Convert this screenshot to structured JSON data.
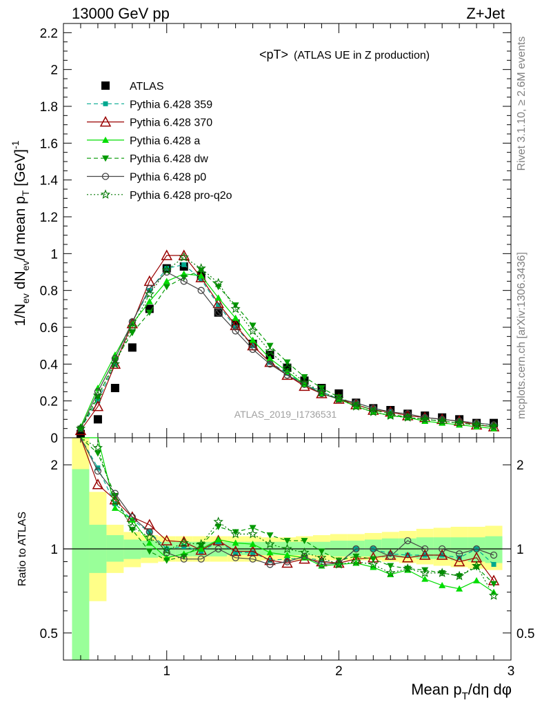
{
  "header": {
    "left": "13000 GeV pp",
    "right": "Z+Jet"
  },
  "side": {
    "rivet": "Rivet 3.1.10, ≥ 2.6M events",
    "mcplots": "mcplots.cern.ch [arXiv:1306.3436]"
  },
  "chart_data": [
    {
      "type": "scatter",
      "title": "<pT> (ATLAS UE in Z production)",
      "title_main": "<pT>",
      "title_sub": "(ATLAS UE in Z production)",
      "ylabel": "1/N_ev dN_ev/d mean p_T [GeV]^-1",
      "ylim": [
        0,
        2.25
      ],
      "xlim": [
        0.4,
        3.0
      ],
      "yticks": [
        "0",
        "0.2",
        "0.4",
        "0.6",
        "0.8",
        "1",
        "1.2",
        "1.4",
        "1.6",
        "1.8",
        "2",
        "2.2"
      ],
      "watermark": "ATLAS_2019_I1736531",
      "x": [
        0.5,
        0.6,
        0.7,
        0.8,
        0.9,
        1.0,
        1.1,
        1.2,
        1.3,
        1.4,
        1.5,
        1.6,
        1.7,
        1.8,
        1.9,
        2.0,
        2.1,
        2.2,
        2.3,
        2.4,
        2.5,
        2.6,
        2.7,
        2.8,
        2.9
      ],
      "series": [
        {
          "name": "ATLAS",
          "color": "#000000",
          "marker": "square-filled",
          "line": "none",
          "values": [
            0.02,
            0.1,
            0.27,
            0.49,
            0.7,
            0.92,
            0.93,
            0.88,
            0.68,
            0.62,
            0.51,
            0.45,
            0.38,
            0.31,
            0.27,
            0.24,
            0.19,
            0.16,
            0.15,
            0.13,
            0.12,
            0.11,
            0.1,
            0.08,
            0.08
          ]
        },
        {
          "name": "Pythia 6.428 359",
          "color": "#00a88f",
          "marker": "square-small",
          "line": "dashed",
          "values": [
            0.05,
            0.2,
            0.4,
            0.63,
            0.8,
            0.92,
            0.94,
            0.86,
            0.72,
            0.6,
            0.5,
            0.41,
            0.35,
            0.29,
            0.25,
            0.21,
            0.19,
            0.16,
            0.14,
            0.12,
            0.11,
            0.1,
            0.09,
            0.08,
            0.07
          ]
        },
        {
          "name": "Pythia 6.428 370",
          "color": "#990000",
          "marker": "triangle-open",
          "line": "solid",
          "values": [
            0.04,
            0.17,
            0.4,
            0.62,
            0.85,
            0.99,
            0.99,
            0.87,
            0.73,
            0.61,
            0.5,
            0.41,
            0.34,
            0.28,
            0.24,
            0.21,
            0.18,
            0.15,
            0.14,
            0.12,
            0.11,
            0.1,
            0.09,
            0.07,
            0.06
          ]
        },
        {
          "name": "Pythia 6.428 a",
          "color": "#00dd00",
          "marker": "triangle-filled",
          "line": "solid",
          "values": [
            0.06,
            0.27,
            0.45,
            0.62,
            0.74,
            0.85,
            0.89,
            0.88,
            0.76,
            0.65,
            0.53,
            0.43,
            0.36,
            0.29,
            0.24,
            0.21,
            0.17,
            0.14,
            0.12,
            0.11,
            0.09,
            0.08,
            0.07,
            0.06,
            0.05
          ]
        },
        {
          "name": "Pythia 6.428 dw",
          "color": "#009900",
          "marker": "triangle-down-filled",
          "line": "dashed",
          "values": [
            0.05,
            0.22,
            0.42,
            0.57,
            0.68,
            0.82,
            0.87,
            0.91,
            0.82,
            0.72,
            0.61,
            0.5,
            0.41,
            0.33,
            0.27,
            0.22,
            0.18,
            0.15,
            0.13,
            0.11,
            0.1,
            0.09,
            0.08,
            0.07,
            0.06
          ]
        },
        {
          "name": "Pythia 6.428 p0",
          "color": "#444444",
          "marker": "circle-open",
          "line": "solid",
          "values": [
            0.05,
            0.25,
            0.43,
            0.63,
            0.81,
            0.9,
            0.85,
            0.8,
            0.68,
            0.58,
            0.48,
            0.4,
            0.34,
            0.29,
            0.24,
            0.21,
            0.19,
            0.16,
            0.14,
            0.13,
            0.11,
            0.1,
            0.09,
            0.08,
            0.07
          ]
        },
        {
          "name": "Pythia 6.428 pro-q2o",
          "color": "#007700",
          "marker": "star-open",
          "line": "dotted",
          "values": [
            0.05,
            0.23,
            0.4,
            0.6,
            0.78,
            0.91,
            0.98,
            0.92,
            0.84,
            0.7,
            0.58,
            0.47,
            0.38,
            0.3,
            0.25,
            0.21,
            0.17,
            0.14,
            0.12,
            0.11,
            0.1,
            0.09,
            0.08,
            0.07,
            0.06
          ]
        }
      ]
    },
    {
      "type": "scatter",
      "ylabel": "Ratio to ATLAS",
      "xlabel": "Mean p_T/dη dφ",
      "xlabel_main": "Mean p",
      "xlabel_sub": "T",
      "xlabel_tail": "/dη dφ",
      "xticks": [
        "1",
        "2",
        "3"
      ],
      "yticks": [
        "0.5",
        "1",
        "2"
      ],
      "log_y": true,
      "ylim": [
        0.4,
        2.5
      ],
      "x": [
        0.5,
        0.6,
        0.7,
        0.8,
        0.9,
        1.0,
        1.1,
        1.2,
        1.3,
        1.4,
        1.5,
        1.6,
        1.7,
        1.8,
        1.9,
        2.0,
        2.1,
        2.2,
        2.3,
        2.4,
        2.5,
        2.6,
        2.7,
        2.8,
        2.9
      ],
      "band_yellow": [
        [
          0.3,
          2.5
        ],
        [
          0.65,
          1.6
        ],
        [
          0.82,
          1.22
        ],
        [
          0.86,
          1.15
        ],
        [
          0.89,
          1.12
        ],
        [
          0.9,
          1.11
        ],
        [
          0.9,
          1.11
        ],
        [
          0.9,
          1.11
        ],
        [
          0.9,
          1.11
        ],
        [
          0.9,
          1.11
        ],
        [
          0.9,
          1.11
        ],
        [
          0.91,
          1.1
        ],
        [
          0.91,
          1.1
        ],
        [
          0.91,
          1.11
        ],
        [
          0.91,
          1.12
        ],
        [
          0.91,
          1.13
        ],
        [
          0.91,
          1.13
        ],
        [
          0.91,
          1.14
        ],
        [
          0.9,
          1.15
        ],
        [
          0.89,
          1.16
        ],
        [
          0.88,
          1.18
        ],
        [
          0.87,
          1.19
        ],
        [
          0.86,
          1.2
        ],
        [
          0.85,
          1.2
        ],
        [
          0.84,
          1.21
        ]
      ],
      "band_green": [
        [
          0.3,
          1.93
        ],
        [
          0.82,
          1.22
        ],
        [
          0.9,
          1.12
        ],
        [
          0.92,
          1.08
        ],
        [
          0.93,
          1.07
        ],
        [
          0.94,
          1.06
        ],
        [
          0.94,
          1.06
        ],
        [
          0.94,
          1.06
        ],
        [
          0.94,
          1.06
        ],
        [
          0.95,
          1.06
        ],
        [
          0.95,
          1.06
        ],
        [
          0.95,
          1.06
        ],
        [
          0.95,
          1.06
        ],
        [
          0.95,
          1.06
        ],
        [
          0.95,
          1.06
        ],
        [
          0.94,
          1.07
        ],
        [
          0.94,
          1.07
        ],
        [
          0.94,
          1.08
        ],
        [
          0.93,
          1.09
        ],
        [
          0.93,
          1.09
        ],
        [
          0.92,
          1.1
        ],
        [
          0.92,
          1.1
        ],
        [
          0.91,
          1.1
        ],
        [
          0.9,
          1.1
        ],
        [
          0.89,
          1.11
        ]
      ],
      "series": [
        {
          "name": "Pythia 6.428 359",
          "values": [
            2.5,
            1.95,
            1.45,
            1.27,
            1.15,
            1.0,
            1.02,
            0.98,
            1.06,
            0.97,
            0.97,
            0.91,
            0.92,
            0.93,
            0.91,
            0.88,
            1.0,
            1.0,
            0.96,
            0.95,
            0.95,
            0.95,
            0.93,
            1.0,
            0.88
          ]
        },
        {
          "name": "Pythia 6.428 370",
          "values": [
            2.5,
            1.7,
            1.5,
            1.3,
            1.22,
            1.07,
            1.06,
            0.99,
            1.07,
            0.98,
            0.98,
            0.91,
            0.89,
            0.92,
            0.9,
            0.89,
            0.92,
            0.93,
            0.95,
            0.93,
            0.95,
            0.95,
            0.9,
            0.93,
            0.77
          ]
        },
        {
          "name": "Pythia 6.428 a",
          "values": [
            2.5,
            2.5,
            1.4,
            1.27,
            1.05,
            0.93,
            0.96,
            1.0,
            1.08,
            1.05,
            1.04,
            0.97,
            0.95,
            0.93,
            0.87,
            0.88,
            0.89,
            0.86,
            0.81,
            0.84,
            0.78,
            0.74,
            0.72,
            0.77,
            0.7
          ]
        },
        {
          "name": "Pythia 6.428 dw",
          "values": [
            2.5,
            2.2,
            1.55,
            1.17,
            0.98,
            0.91,
            0.94,
            1.03,
            1.2,
            1.15,
            1.19,
            1.12,
            1.07,
            1.07,
            0.98,
            0.91,
            0.94,
            0.92,
            0.87,
            0.85,
            0.84,
            0.82,
            0.8,
            0.86,
            0.75
          ]
        },
        {
          "name": "Pythia 6.428 p0",
          "values": [
            2.5,
            1.9,
            1.58,
            1.3,
            1.15,
            0.97,
            0.92,
            0.92,
            1.0,
            0.93,
            0.92,
            0.88,
            0.9,
            0.94,
            0.88,
            0.89,
            1.0,
            1.0,
            0.94,
            1.07,
            1.0,
            1.0,
            0.96,
            1.0,
            0.95
          ]
        },
        {
          "name": "Pythia 6.428 pro-q2o",
          "values": [
            2.5,
            2.3,
            1.48,
            1.2,
            1.1,
            0.99,
            1.05,
            1.04,
            1.25,
            1.13,
            1.13,
            1.04,
            1.0,
            0.97,
            0.93,
            0.88,
            0.9,
            0.88,
            0.82,
            0.85,
            0.82,
            0.82,
            0.8,
            0.87,
            0.68
          ]
        }
      ]
    }
  ]
}
